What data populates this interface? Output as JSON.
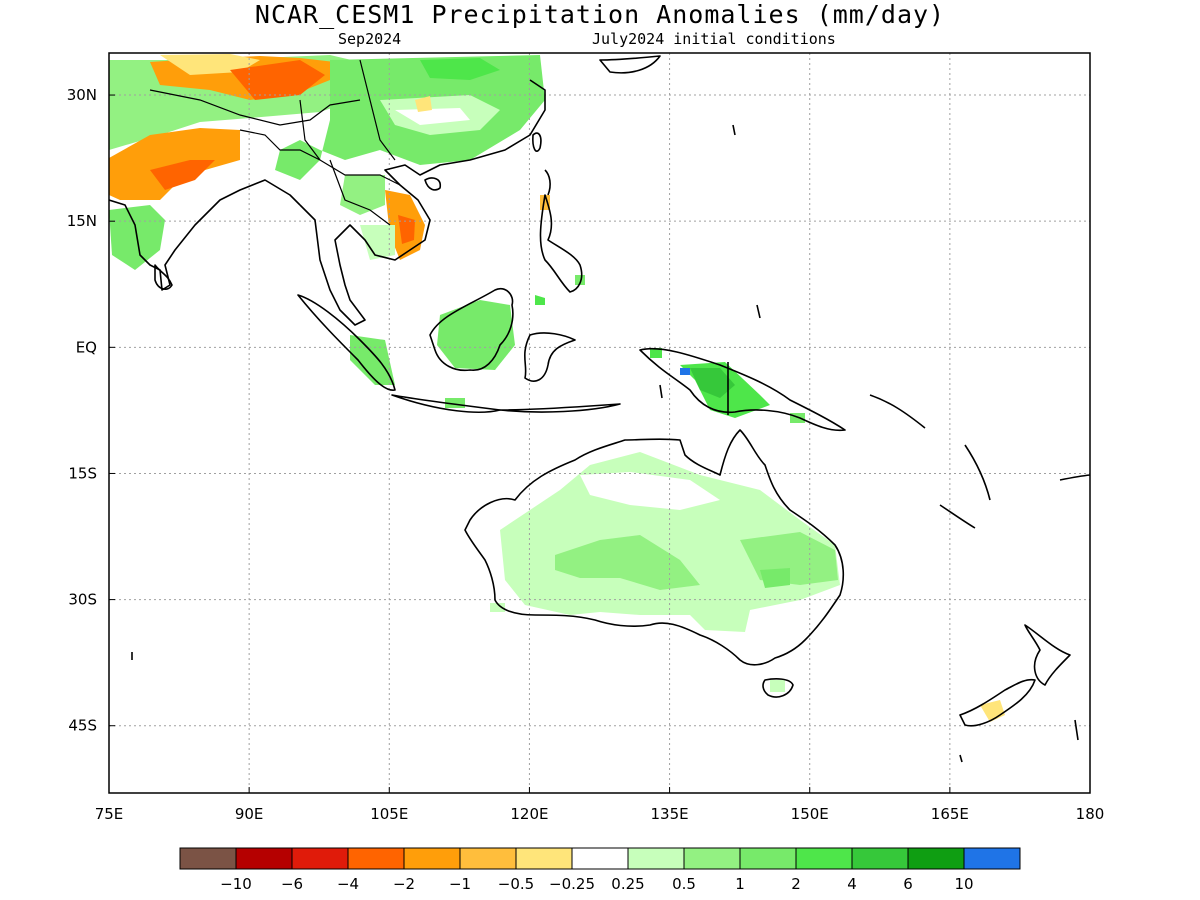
{
  "title": "NCAR_CESM1 Precipitation Anomalies (mm/day)",
  "subtitle_left": "Sep2024",
  "subtitle_right": "July2024 initial conditions",
  "map": {
    "lon_range": [
      75,
      180
    ],
    "lat_range": [
      -53,
      35
    ],
    "grid": true,
    "lat_ticks": [
      {
        "value": 30,
        "label": "30N"
      },
      {
        "value": 15,
        "label": "15N"
      },
      {
        "value": 0,
        "label": "EQ"
      },
      {
        "value": -15,
        "label": "15S"
      },
      {
        "value": -30,
        "label": "30S"
      },
      {
        "value": -45,
        "label": "45S"
      }
    ],
    "lon_ticks": [
      {
        "value": 75,
        "label": "75E"
      },
      {
        "value": 90,
        "label": "90E"
      },
      {
        "value": 105,
        "label": "105E"
      },
      {
        "value": 120,
        "label": "120E"
      },
      {
        "value": 135,
        "label": "135E"
      },
      {
        "value": 150,
        "label": "150E"
      },
      {
        "value": 165,
        "label": "165E"
      },
      {
        "value": 180,
        "label": "180"
      }
    ]
  },
  "colorbar": {
    "colors": [
      "#7b5345",
      "#b50000",
      "#e01b0a",
      "#ff6400",
      "#ff9e0a",
      "#ffbe3c",
      "#ffe57a",
      "#ffffff",
      "#c7ffbb",
      "#93f182",
      "#77ea6a",
      "#4ee64a",
      "#36c83a",
      "#0f9e12",
      "#1f74e7"
    ],
    "labels": [
      "-10",
      "-6",
      "-4",
      "-2",
      "-1",
      "-0.5",
      "-0.25",
      "0.25",
      "0.5",
      "1",
      "2",
      "4",
      "6",
      "10"
    ]
  }
}
